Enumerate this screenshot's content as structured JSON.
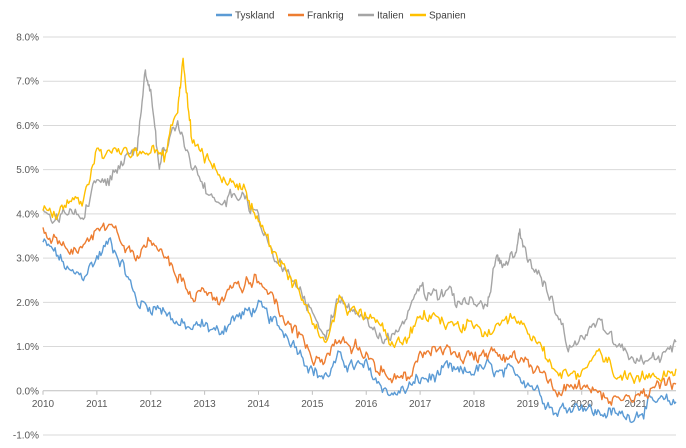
{
  "chart_data": {
    "type": "line",
    "title": "",
    "xlabel": "",
    "ylabel": "",
    "ylim": [
      -1.0,
      8.0
    ],
    "xlim": [
      2010,
      2021.75
    ],
    "y_ticks": [
      -1.0,
      0.0,
      1.0,
      2.0,
      3.0,
      4.0,
      5.0,
      6.0,
      7.0,
      8.0
    ],
    "y_tick_labels": [
      "-1.0%",
      "0.0%",
      "1.0%",
      "2.0%",
      "3.0%",
      "4.0%",
      "5.0%",
      "6.0%",
      "7.0%",
      "8.0%"
    ],
    "x_ticks": [
      2010,
      2011,
      2012,
      2013,
      2014,
      2015,
      2016,
      2017,
      2018,
      2019,
      2020,
      2021
    ],
    "x_tick_labels": [
      "2010",
      "2011",
      "2012",
      "2013",
      "2014",
      "2015",
      "2016",
      "2017",
      "2018",
      "2019",
      "2020",
      "2021"
    ],
    "legend_position": "top",
    "grid": true,
    "series": [
      {
        "name": "Tyskland",
        "color": "#5B9BD5",
        "x": [
          2010.0,
          2010.25,
          2010.5,
          2010.75,
          2011.0,
          2011.25,
          2011.5,
          2011.75,
          2012.0,
          2012.25,
          2012.5,
          2012.75,
          2013.0,
          2013.25,
          2013.5,
          2013.75,
          2014.0,
          2014.25,
          2014.5,
          2014.75,
          2015.0,
          2015.25,
          2015.5,
          2015.75,
          2016.0,
          2016.25,
          2016.5,
          2016.75,
          2017.0,
          2017.25,
          2017.5,
          2017.75,
          2018.0,
          2018.25,
          2018.5,
          2018.75,
          2019.0,
          2019.25,
          2019.5,
          2019.75,
          2020.0,
          2020.25,
          2020.5,
          2020.75,
          2021.0,
          2021.25,
          2021.5,
          2021.75
        ],
        "values": [
          3.35,
          3.1,
          2.65,
          2.6,
          3.0,
          3.4,
          2.8,
          2.0,
          1.9,
          1.85,
          1.5,
          1.4,
          1.5,
          1.3,
          1.6,
          1.75,
          1.9,
          1.6,
          1.3,
          0.95,
          0.45,
          0.3,
          0.75,
          0.55,
          0.55,
          0.15,
          -0.1,
          0.05,
          0.25,
          0.3,
          0.5,
          0.4,
          0.45,
          0.55,
          0.35,
          0.45,
          0.2,
          -0.05,
          -0.5,
          -0.35,
          -0.3,
          -0.5,
          -0.5,
          -0.55,
          -0.55,
          -0.3,
          -0.25,
          -0.25
        ]
      },
      {
        "name": "Frankrig",
        "color": "#ED7D31",
        "x": [
          2010.0,
          2010.25,
          2010.5,
          2010.75,
          2011.0,
          2011.25,
          2011.5,
          2011.75,
          2012.0,
          2012.25,
          2012.5,
          2012.75,
          2013.0,
          2013.25,
          2013.5,
          2013.75,
          2014.0,
          2014.25,
          2014.5,
          2014.75,
          2015.0,
          2015.25,
          2015.5,
          2015.75,
          2016.0,
          2016.25,
          2016.5,
          2016.75,
          2017.0,
          2017.25,
          2017.5,
          2017.75,
          2018.0,
          2018.25,
          2018.5,
          2018.75,
          2019.0,
          2019.25,
          2019.5,
          2019.75,
          2020.0,
          2020.25,
          2020.5,
          2020.75,
          2021.0,
          2021.25,
          2021.5,
          2021.75
        ],
        "values": [
          3.6,
          3.4,
          3.05,
          3.2,
          3.55,
          3.7,
          3.3,
          3.0,
          3.4,
          3.1,
          2.6,
          2.2,
          2.2,
          2.0,
          2.3,
          2.4,
          2.5,
          2.1,
          1.6,
          1.25,
          0.75,
          0.7,
          1.1,
          1.0,
          0.95,
          0.5,
          0.25,
          0.3,
          0.8,
          1.0,
          0.85,
          0.75,
          0.8,
          0.85,
          0.7,
          0.8,
          0.65,
          0.4,
          0.0,
          0.1,
          0.05,
          0.0,
          -0.15,
          -0.2,
          -0.1,
          0.05,
          0.15,
          0.15
        ]
      },
      {
        "name": "Italien",
        "color": "#A5A5A5",
        "x": [
          2010.0,
          2010.25,
          2010.5,
          2010.75,
          2011.0,
          2011.25,
          2011.5,
          2011.75,
          2011.9,
          2012.0,
          2012.15,
          2012.25,
          2012.5,
          2012.75,
          2013.0,
          2013.25,
          2013.5,
          2013.75,
          2014.0,
          2014.25,
          2014.5,
          2014.75,
          2015.0,
          2015.25,
          2015.5,
          2015.75,
          2016.0,
          2016.25,
          2016.5,
          2016.75,
          2017.0,
          2017.25,
          2017.5,
          2017.75,
          2018.0,
          2018.25,
          2018.4,
          2018.5,
          2018.75,
          2018.85,
          2019.0,
          2019.25,
          2019.5,
          2019.75,
          2020.0,
          2020.25,
          2020.5,
          2020.75,
          2021.0,
          2021.25,
          2021.5,
          2021.75
        ],
        "values": [
          4.05,
          3.9,
          4.0,
          4.0,
          4.8,
          4.8,
          5.2,
          5.5,
          7.3,
          6.8,
          5.0,
          5.5,
          6.0,
          5.2,
          4.6,
          4.1,
          4.4,
          4.3,
          3.9,
          3.2,
          2.7,
          2.3,
          1.7,
          1.2,
          2.2,
          1.7,
          1.5,
          1.3,
          1.2,
          1.7,
          2.3,
          2.1,
          2.2,
          2.0,
          2.0,
          1.9,
          3.0,
          2.8,
          3.0,
          3.6,
          2.9,
          2.6,
          1.9,
          1.0,
          1.2,
          1.6,
          1.3,
          0.9,
          0.6,
          0.7,
          0.8,
          1.1
        ]
      },
      {
        "name": "Spanien",
        "color": "#FFC000",
        "x": [
          2010.0,
          2010.25,
          2010.5,
          2010.75,
          2011.0,
          2011.25,
          2011.5,
          2011.75,
          2012.0,
          2012.25,
          2012.5,
          2012.6,
          2012.75,
          2013.0,
          2013.25,
          2013.5,
          2013.75,
          2014.0,
          2014.25,
          2014.5,
          2014.75,
          2015.0,
          2015.25,
          2015.5,
          2015.75,
          2016.0,
          2016.25,
          2016.5,
          2016.75,
          2017.0,
          2017.25,
          2017.5,
          2017.75,
          2018.0,
          2018.25,
          2018.5,
          2018.75,
          2019.0,
          2019.25,
          2019.5,
          2019.75,
          2020.0,
          2020.25,
          2020.5,
          2020.75,
          2021.0,
          2021.25,
          2021.5,
          2021.75
        ],
        "values": [
          4.05,
          3.9,
          4.4,
          4.3,
          5.4,
          5.3,
          5.5,
          5.4,
          5.5,
          5.3,
          6.5,
          7.5,
          5.8,
          5.3,
          4.9,
          4.7,
          4.5,
          3.9,
          3.2,
          2.7,
          2.2,
          1.6,
          1.2,
          2.1,
          1.8,
          1.7,
          1.5,
          1.0,
          1.2,
          1.6,
          1.7,
          1.5,
          1.5,
          1.4,
          1.3,
          1.4,
          1.6,
          1.3,
          1.0,
          0.5,
          0.3,
          0.3,
          0.9,
          0.6,
          0.3,
          0.1,
          0.4,
          0.4,
          0.5
        ]
      }
    ]
  }
}
